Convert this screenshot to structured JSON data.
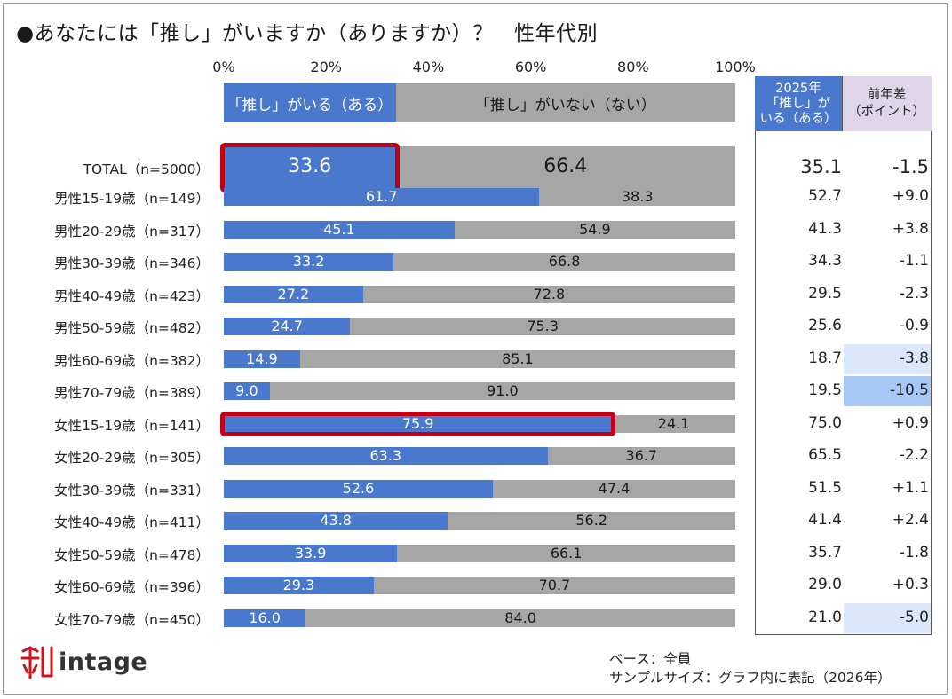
{
  "title": "●あなたには「推し」がいますか（ありますか）？　性年代別",
  "colors": {
    "oshi": "#4a78cc",
    "none": "#a6a6a6",
    "highlight": "#c00018",
    "diff_light": "#dbe7fb",
    "diff_strong": "#a7c8f4"
  },
  "chart_data": {
    "type": "bar",
    "orientation": "horizontal",
    "stacked": true,
    "title": "●あなたには「推し」がいますか（ありますか）？　性年代別",
    "xlim": [
      0,
      100
    ],
    "x_ticks": [
      "0%",
      "20%",
      "40%",
      "60%",
      "80%",
      "100%"
    ],
    "legend": {
      "placement": "top",
      "entries": [
        "「推し」がいる（ある）",
        "「推し」がいない（ない）"
      ]
    },
    "categories": [
      "TOTAL（n=5000）",
      "男性15-19歳（n=149）",
      "男性20-29歳（n=317）",
      "男性30-39歳（n=346）",
      "男性40-49歳（n=423）",
      "男性50-59歳（n=482）",
      "男性60-69歳（n=382）",
      "男性70-79歳（n=389）",
      "女性15-19歳（n=141）",
      "女性20-29歳（n=305）",
      "女性30-39歳（n=331）",
      "女性40-49歳（n=411）",
      "女性50-59歳（n=478）",
      "女性60-69歳（n=396）",
      "女性70-79歳（n=450）"
    ],
    "series": [
      {
        "name": "「推し」がいる（ある）",
        "values": [
          33.6,
          61.7,
          45.1,
          33.2,
          27.2,
          24.7,
          14.9,
          9.0,
          75.9,
          63.3,
          52.6,
          43.8,
          33.9,
          29.3,
          16.0
        ],
        "labels": [
          "33.6",
          "61.7",
          "45.1",
          "33.2",
          "27.2",
          "24.7",
          "14.9",
          "9.0",
          "75.9",
          "63.3",
          "52.6",
          "43.8",
          "33.9",
          "29.3",
          "16.0"
        ]
      },
      {
        "name": "「推し」がいない（ない）",
        "values": [
          66.4,
          38.3,
          54.9,
          66.8,
          72.8,
          75.3,
          85.1,
          91.0,
          24.1,
          36.7,
          47.4,
          56.2,
          66.1,
          70.7,
          84.0
        ],
        "labels": [
          "66.4",
          "38.3",
          "54.9",
          "66.8",
          "72.8",
          "75.3",
          "85.1",
          "91.0",
          "24.1",
          "36.7",
          "47.4",
          "56.2",
          "66.1",
          "70.7",
          "84.0"
        ]
      }
    ],
    "highlighted_categories": [
      "TOTAL（n=5000）",
      "女性15-19歳（n=141）"
    ]
  },
  "table": {
    "header_2025": [
      "2025年",
      "「推し」が",
      "いる（ある）"
    ],
    "header_diff": [
      "前年差",
      "（ポイント）"
    ],
    "values_2025": [
      "35.1",
      "52.7",
      "41.3",
      "34.3",
      "29.5",
      "25.6",
      "18.7",
      "19.5",
      "75.0",
      "65.5",
      "51.5",
      "41.4",
      "35.7",
      "29.0",
      "21.0"
    ],
    "values_diff": [
      "-1.5",
      "+9.0",
      "+3.8",
      "-1.1",
      "-2.3",
      "-0.9",
      "-3.8",
      "-10.5",
      "+0.9",
      "-2.2",
      "+1.1",
      "+2.4",
      "-1.8",
      "+0.3",
      "-5.0"
    ],
    "diff_shading": [
      "none",
      "none",
      "none",
      "none",
      "none",
      "none",
      "light",
      "strong",
      "none",
      "none",
      "none",
      "none",
      "none",
      "none",
      "light"
    ]
  },
  "logo": {
    "text": "intage"
  },
  "notes": {
    "base": "ベース：全員",
    "sample": "サンプルサイズ：グラフ内に表記（2026年）"
  }
}
